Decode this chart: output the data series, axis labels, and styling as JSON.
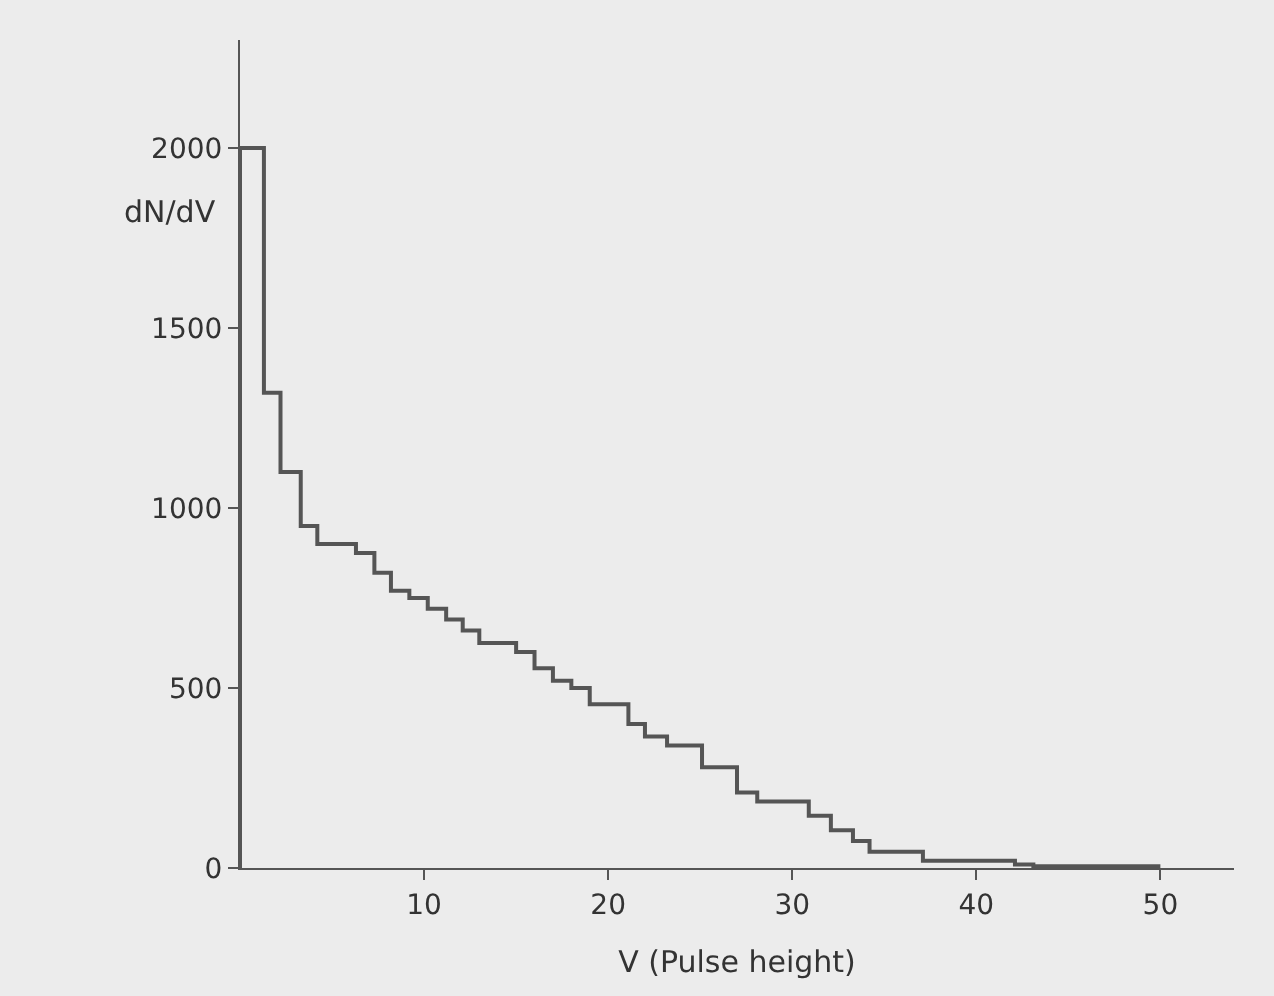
{
  "chart_data": {
    "type": "histogram",
    "xlabel": "V (Pulse height)",
    "ylabel": "dN/dV",
    "bins": [
      0,
      1.3,
      2.2,
      3.3,
      4.2,
      6.3,
      7.3,
      8.2,
      9.2,
      10.2,
      11.2,
      12.1,
      13.0,
      15.0,
      16.0,
      17.0,
      18.0,
      19.0,
      21.1,
      22.0,
      23.2,
      25.1,
      27.0,
      28.1,
      30.9,
      32.1,
      33.3,
      34.2,
      37.1,
      42.1,
      43.1,
      50
    ],
    "values": [
      2000,
      1320,
      1100,
      950,
      900,
      875,
      820,
      770,
      750,
      720,
      690,
      660,
      625,
      600,
      555,
      520,
      500,
      455,
      400,
      365,
      340,
      280,
      210,
      185,
      145,
      105,
      75,
      45,
      20,
      10,
      5
    ],
    "color": "#555555",
    "xlim": [
      0,
      54
    ],
    "xticks": [
      10,
      20,
      30,
      40,
      50
    ],
    "ylim": [
      0,
      2300
    ],
    "yticks": [
      0,
      500,
      1000,
      1500,
      2000
    ],
    "grid": false
  }
}
